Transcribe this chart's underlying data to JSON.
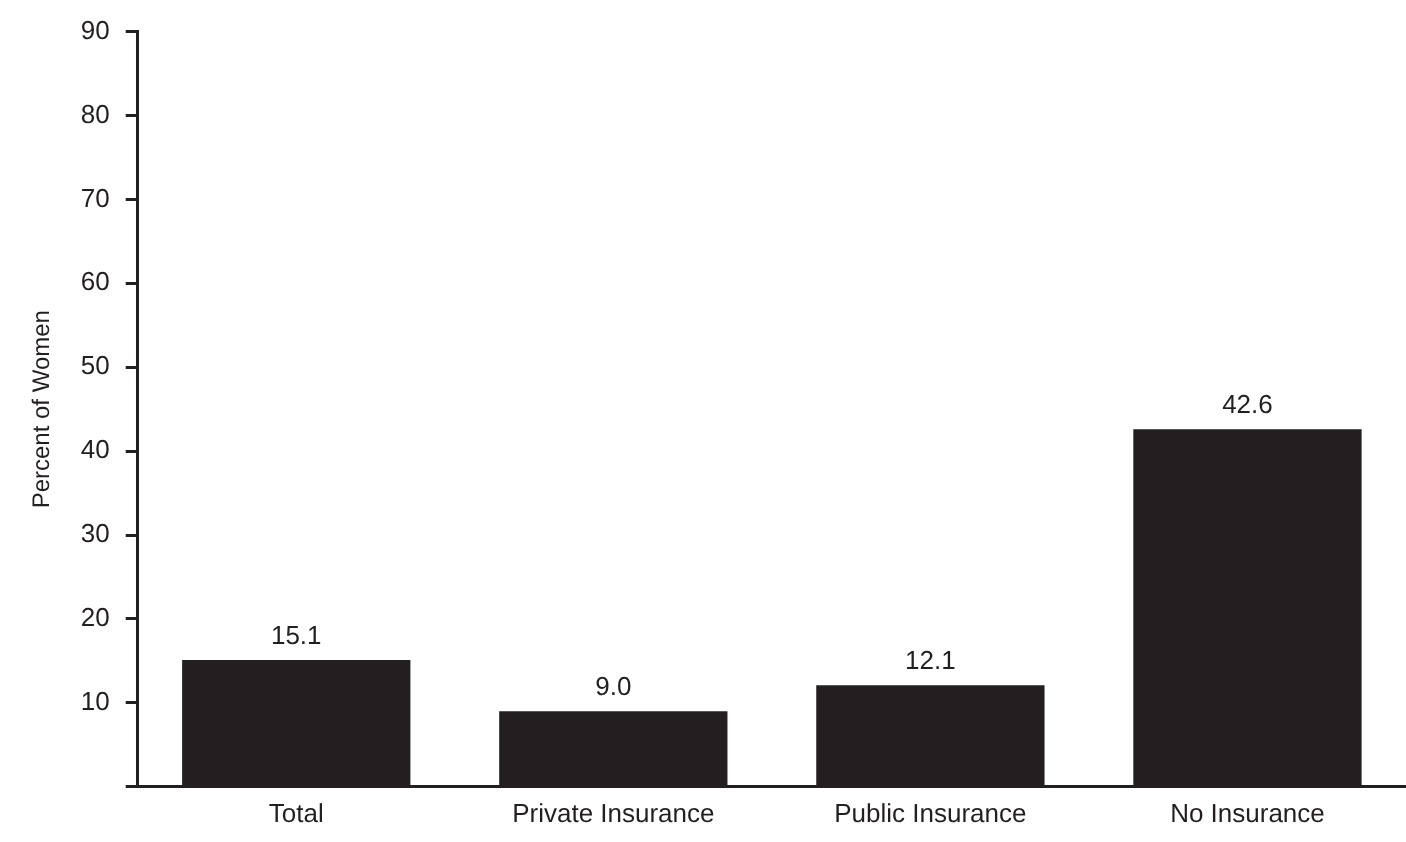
{
  "chart_data": {
    "type": "bar",
    "ylabel": "Percent of Women",
    "categories": [
      "Total",
      "Private Insurance",
      "Public Insurance",
      "No Insurance"
    ],
    "values": [
      15.1,
      9.0,
      12.1,
      42.6
    ],
    "color": "#231f20",
    "value_labels": [
      "15.1",
      "9.0",
      "12.1",
      "42.6"
    ],
    "ylim": [
      0,
      90
    ],
    "yticks": [
      {
        "value": 0,
        "label": null
      },
      10,
      20,
      30,
      40,
      50,
      60,
      70,
      80,
      90
    ],
    "grid": false,
    "legend": false
  }
}
